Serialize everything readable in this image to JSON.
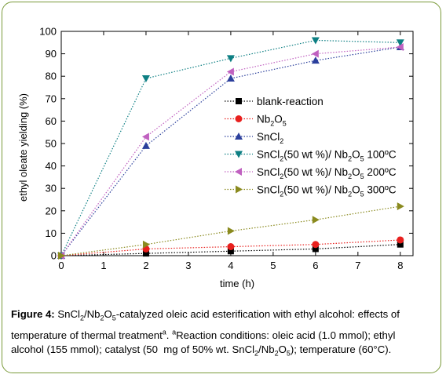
{
  "chart_data": {
    "type": "line",
    "xlabel": "time (h)",
    "ylabel": "ethyl oleate yielding (%)",
    "xlim": [
      0,
      8.3
    ],
    "ylim": [
      0,
      100
    ],
    "x_ticks": [
      0,
      1,
      2,
      3,
      4,
      5,
      6,
      7,
      8
    ],
    "y_ticks": [
      0,
      10,
      20,
      30,
      40,
      50,
      60,
      70,
      80,
      90,
      100
    ],
    "legend_position": "center-right",
    "series": [
      {
        "name": "blank-reaction",
        "marker": "square",
        "color": "#000000",
        "x": [
          0,
          2,
          4,
          6,
          8
        ],
        "y": [
          0,
          1,
          2,
          3,
          5
        ]
      },
      {
        "name": "Nb2O5",
        "name_parts": [
          "Nb",
          "2",
          "O",
          "5",
          ""
        ],
        "marker": "circle",
        "color": "#e8201e",
        "x": [
          0,
          2,
          4,
          6,
          8
        ],
        "y": [
          0,
          3,
          4,
          5,
          7
        ]
      },
      {
        "name": "SnCl2",
        "name_parts": [
          "SnCl",
          "2",
          ""
        ],
        "marker": "triangle-up",
        "color": "#2b3f9c",
        "x": [
          0,
          2,
          4,
          6,
          8
        ],
        "y": [
          0,
          49,
          79,
          87,
          93
        ]
      },
      {
        "name": "SnCl2(50 wt %)/ Nb2O5 100ºC",
        "name_parts": [
          "SnCl",
          "2",
          "(50 wt %)/ Nb",
          "2",
          "O",
          "5",
          " 100ºC"
        ],
        "marker": "triangle-down",
        "color": "#0d7f83",
        "x": [
          0,
          2,
          4,
          6,
          8
        ],
        "y": [
          0,
          79,
          88,
          96,
          95
        ]
      },
      {
        "name": "SnCl2(50 wt %)/ Nb2O5 200ºC",
        "name_parts": [
          "SnCl",
          "2",
          "(50 wt %)/ Nb",
          "2",
          "O",
          "5",
          " 200ºC"
        ],
        "marker": "triangle-left",
        "color": "#c061c0",
        "x": [
          0,
          2,
          4,
          6,
          8
        ],
        "y": [
          0,
          53,
          82,
          90,
          93
        ]
      },
      {
        "name": "SnCl2(50 wt %)/ Nb2O5 300ºC",
        "name_parts": [
          "SnCl",
          "2",
          "(50 wt %)/ Nb",
          "2",
          "O",
          "5",
          " 300ºC"
        ],
        "marker": "triangle-right",
        "color": "#8a8a1e",
        "x": [
          0,
          2,
          4,
          6,
          8
        ],
        "y": [
          0,
          5,
          11,
          16,
          22
        ]
      }
    ]
  },
  "caption": {
    "label": "Figure 4:",
    "parts": [
      {
        "t": " SnCl",
        "s": ""
      },
      {
        "t": "2",
        "s": "sub"
      },
      {
        "t": "/Nb",
        "s": ""
      },
      {
        "t": "2",
        "s": "sub"
      },
      {
        "t": "O",
        "s": ""
      },
      {
        "t": "5",
        "s": "sub"
      },
      {
        "t": "-catalyzed oleic acid esterification with ethyl alcohol: effects of temperature of thermal treatment",
        "s": ""
      },
      {
        "t": "a",
        "s": "sup"
      },
      {
        "t": ". ",
        "s": ""
      },
      {
        "t": "a",
        "s": "sup"
      },
      {
        "t": "Reaction conditions: oleic acid (1.0 mmol); ethyl alcohol (155 mmol); catalyst (50  mg of 50% wt. SnCl",
        "s": ""
      },
      {
        "t": "2",
        "s": "sub"
      },
      {
        "t": "/Nb",
        "s": ""
      },
      {
        "t": "2",
        "s": "sub"
      },
      {
        "t": "O",
        "s": ""
      },
      {
        "t": "5",
        "s": "sub"
      },
      {
        "t": "); temperature (60°C).",
        "s": ""
      }
    ]
  }
}
